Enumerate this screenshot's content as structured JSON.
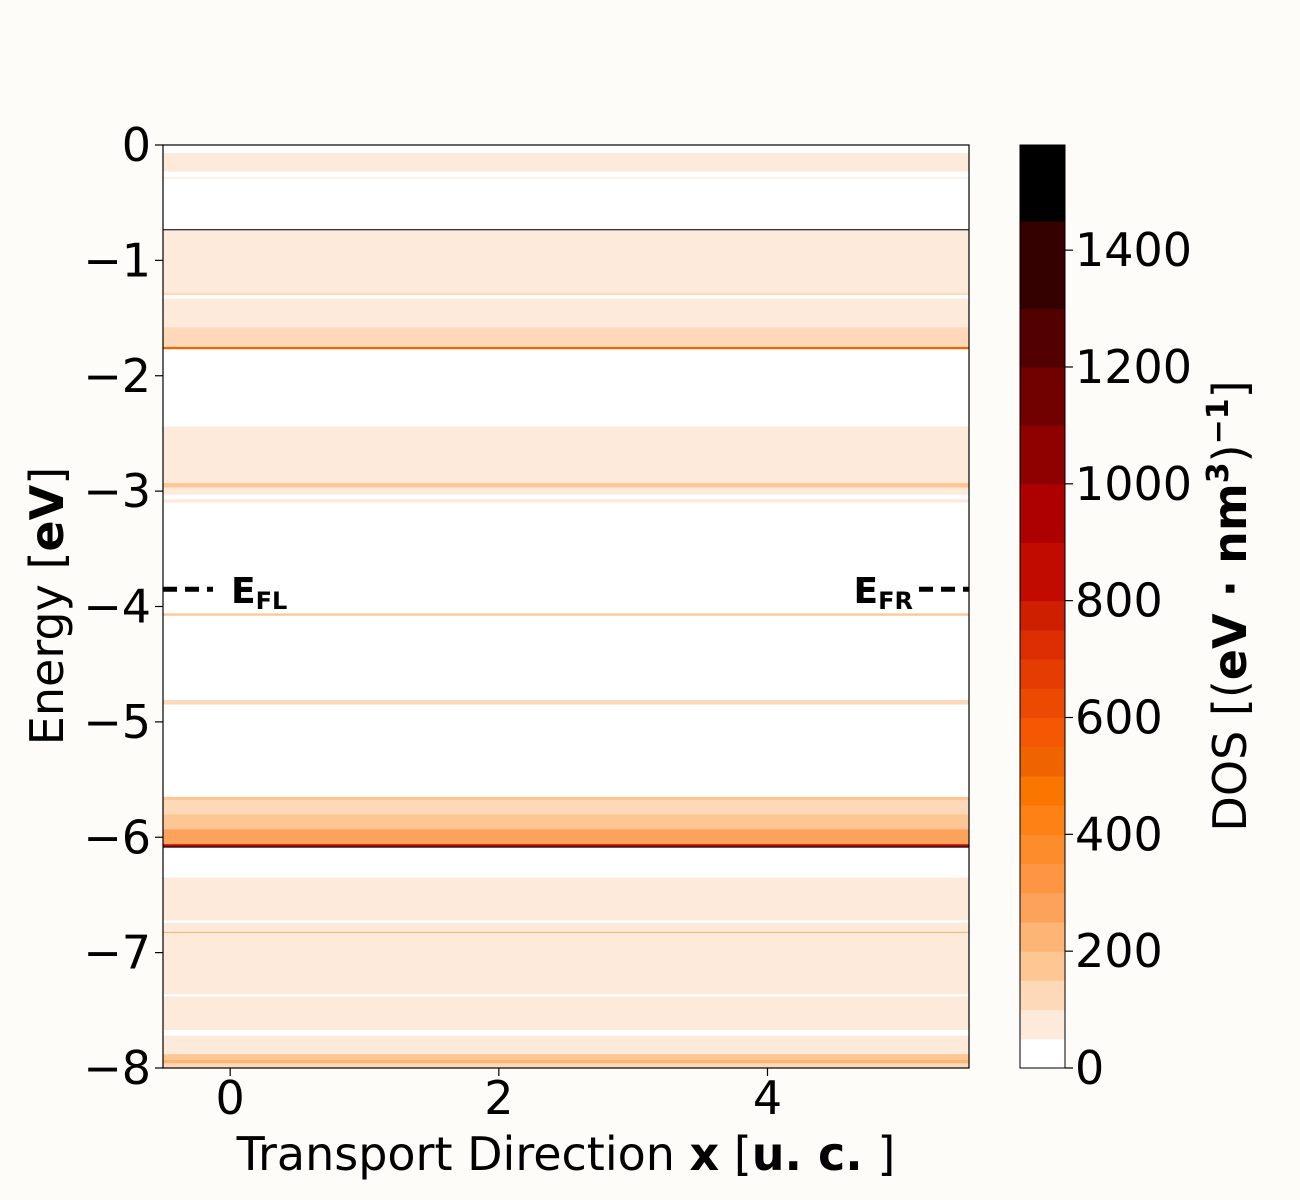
{
  "chart_data": {
    "type": "heatmap",
    "x_axis": {
      "label_plain": "Transport Direction ",
      "label_bold_var": "x",
      "label_unit_open": " [",
      "label_unit_bold": "u. c.",
      "label_unit_close": " ]",
      "range": [
        -0.5,
        5.5
      ],
      "ticks": [
        0,
        2,
        4
      ],
      "tick_labels": [
        "0",
        "2",
        "4"
      ]
    },
    "y_axis": {
      "label_plain": "Energy [",
      "label_bold": "eV",
      "label_close": "]",
      "range": [
        -8,
        0
      ],
      "ticks": [
        0,
        -1,
        -2,
        -3,
        -4,
        -5,
        -6,
        -7,
        -8
      ],
      "tick_labels": [
        "0",
        "−1",
        "−2",
        "−3",
        "−4",
        "−5",
        "−6",
        "−7",
        "−8"
      ]
    },
    "colorbar": {
      "label_plain": "DOS [(",
      "label_bold": "eV · nm",
      "label_sup": "3",
      "label_tail": ")",
      "label_sup2": "−1",
      "label_close": "]",
      "range": [
        0,
        1580
      ],
      "ticks": [
        0,
        200,
        400,
        600,
        800,
        1000,
        1200,
        1400
      ],
      "tick_labels": [
        "0",
        "200",
        "400",
        "600",
        "800",
        "1000",
        "1200",
        "1400"
      ],
      "colormap": "Oranges-to-black",
      "levels": [
        {
          "from": 0,
          "to": 50,
          "color": "#ffffff"
        },
        {
          "from": 50,
          "to": 100,
          "color": "#fdeadb"
        },
        {
          "from": 100,
          "to": 150,
          "color": "#fdd9b9"
        },
        {
          "from": 150,
          "to": 200,
          "color": "#fdc793"
        },
        {
          "from": 200,
          "to": 250,
          "color": "#fdb575"
        },
        {
          "from": 250,
          "to": 300,
          "color": "#fda25a"
        },
        {
          "from": 300,
          "to": 350,
          "color": "#fd9643"
        },
        {
          "from": 350,
          "to": 400,
          "color": "#fd8d2b"
        },
        {
          "from": 400,
          "to": 450,
          "color": "#fd8114"
        },
        {
          "from": 450,
          "to": 500,
          "color": "#fa7600"
        },
        {
          "from": 500,
          "to": 550,
          "color": "#f06400"
        },
        {
          "from": 550,
          "to": 600,
          "color": "#f55803"
        },
        {
          "from": 600,
          "to": 650,
          "color": "#ec4a02"
        },
        {
          "from": 650,
          "to": 700,
          "color": "#e53c02"
        },
        {
          "from": 700,
          "to": 750,
          "color": "#dc2e02"
        },
        {
          "from": 750,
          "to": 800,
          "color": "#cf1f01"
        },
        {
          "from": 800,
          "to": 900,
          "color": "#c10b00"
        },
        {
          "from": 900,
          "to": 1000,
          "color": "#ad0000"
        },
        {
          "from": 1000,
          "to": 1100,
          "color": "#8f0000"
        },
        {
          "from": 1100,
          "to": 1200,
          "color": "#710000"
        },
        {
          "from": 1200,
          "to": 1300,
          "color": "#520000"
        },
        {
          "from": 1300,
          "to": 1450,
          "color": "#340000"
        },
        {
          "from": 1450,
          "to": 1580,
          "color": "#000000"
        }
      ]
    },
    "bands": [
      {
        "e_top": -0.07,
        "e_bot": -0.23,
        "dos": 70
      },
      {
        "e_top": -0.28,
        "e_bot": -0.29,
        "dos": 60
      },
      {
        "e_top": -0.73,
        "e_bot": -0.74,
        "dos": 1500
      },
      {
        "e_top": -0.74,
        "e_bot": -1.28,
        "dos": 85
      },
      {
        "e_top": -1.28,
        "e_bot": -1.3,
        "dos": 140
      },
      {
        "e_top": -1.33,
        "e_bot": -1.58,
        "dos": 80
      },
      {
        "e_top": -1.58,
        "e_bot": -1.6,
        "dos": 140
      },
      {
        "e_top": -1.6,
        "e_bot": -1.75,
        "dos": 110
      },
      {
        "e_top": -1.75,
        "e_bot": -1.77,
        "dos": 500
      },
      {
        "e_top": -2.44,
        "e_bot": -2.93,
        "dos": 80
      },
      {
        "e_top": -2.93,
        "e_bot": -2.97,
        "dos": 170
      },
      {
        "e_top": -2.97,
        "e_bot": -3.03,
        "dos": 90
      },
      {
        "e_top": -3.07,
        "e_bot": -3.1,
        "dos": 80
      },
      {
        "e_top": -4.06,
        "e_bot": -4.08,
        "dos": 180
      },
      {
        "e_top": -4.81,
        "e_bot": -4.85,
        "dos": 140
      },
      {
        "e_top": -5.65,
        "e_bot": -5.68,
        "dos": 160
      },
      {
        "e_top": -5.68,
        "e_bot": -5.8,
        "dos": 110
      },
      {
        "e_top": -5.8,
        "e_bot": -5.93,
        "dos": 160
      },
      {
        "e_top": -5.93,
        "e_bot": -6.06,
        "dos": 280
      },
      {
        "e_top": -6.06,
        "e_bot": -6.08,
        "dos": 800
      },
      {
        "e_top": -6.08,
        "e_bot": -6.09,
        "dos": 1500
      },
      {
        "e_top": -6.35,
        "e_bot": -6.72,
        "dos": 80
      },
      {
        "e_top": -6.74,
        "e_bot": -6.82,
        "dos": 85
      },
      {
        "e_top": -6.82,
        "e_bot": -6.83,
        "dos": 220
      },
      {
        "e_top": -6.83,
        "e_bot": -7.36,
        "dos": 85
      },
      {
        "e_top": -7.38,
        "e_bot": -7.67,
        "dos": 80
      },
      {
        "e_top": -7.72,
        "e_bot": -7.88,
        "dos": 80
      },
      {
        "e_top": -7.88,
        "e_bot": -7.93,
        "dos": 170
      },
      {
        "e_top": -7.93,
        "e_bot": -7.96,
        "dos": 230
      },
      {
        "e_top": -7.96,
        "e_bot": -8.0,
        "dos": 120
      }
    ],
    "fermi_levels": [
      {
        "label_main": "E",
        "label_sub": "FL",
        "energy": -3.85,
        "side": "left"
      },
      {
        "label_main": "E",
        "label_sub": "FR",
        "energy": -3.85,
        "side": "right"
      }
    ]
  }
}
